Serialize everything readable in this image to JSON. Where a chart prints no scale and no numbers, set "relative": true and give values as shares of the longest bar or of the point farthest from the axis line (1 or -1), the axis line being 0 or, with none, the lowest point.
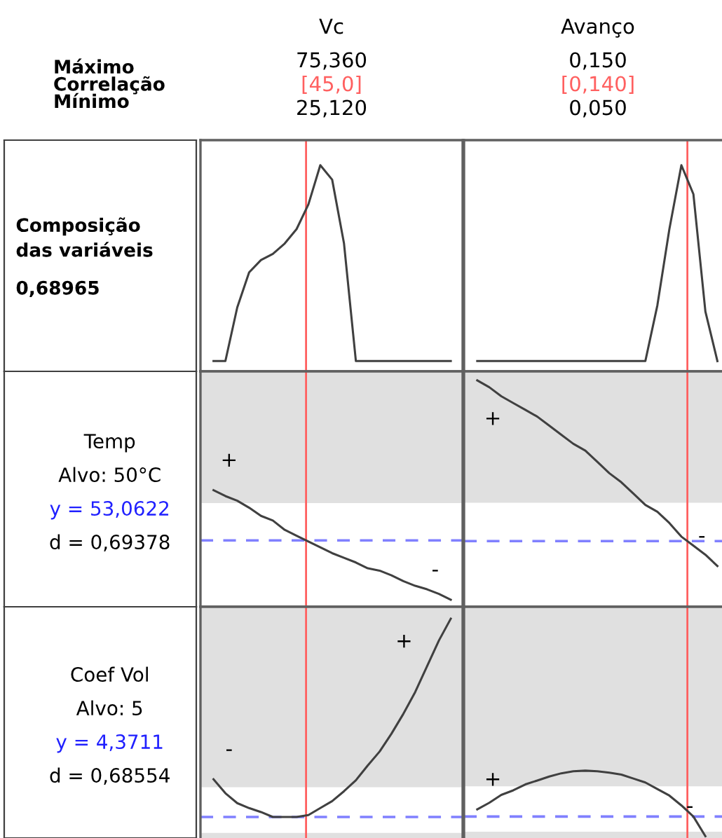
{
  "chart_data": [
    {
      "type": "line",
      "relative": true,
      "title": "Vc",
      "subtitle": "Máximo\nCorrelação\nMínimo",
      "ylabel": "Composição\ndas variáveis",
      "color": "#404040",
      "categories": [
        null,
        null,
        null,
        null,
        null,
        null,
        null,
        null,
        null,
        null,
        null,
        null,
        null,
        null,
        null,
        null,
        null,
        null,
        null,
        null,
        null
      ],
      "values": [
        0.05,
        0.05,
        0.31,
        0.48,
        0.54,
        0.57,
        0.62,
        0.69,
        0.81,
        1,
        0.93,
        0.62,
        0.05,
        0.05,
        0.05,
        0.05,
        0.05,
        0.05,
        0.05,
        0.05,
        0.05
      ],
      "annotations": [
        "75,360",
        "[45,0]",
        "25,120",
        "0,68965"
      ]
    },
    {
      "type": "line",
      "relative": true,
      "title": "Avanço",
      "color": "#404040",
      "categories": [
        null,
        null,
        null,
        null,
        null,
        null,
        null,
        null,
        null,
        null,
        null,
        null,
        null,
        null,
        null,
        null,
        null,
        null,
        null,
        null,
        null
      ],
      "values": [
        0.05,
        0.05,
        0.05,
        0.05,
        0.05,
        0.05,
        0.05,
        0.05,
        0.05,
        0.05,
        0.05,
        0.05,
        0.05,
        0.05,
        0.05,
        0.32,
        0.69,
        1,
        0.86,
        0.29,
        0.05
      ],
      "annotations": [
        "0,150",
        "[0,140]",
        "0,050"
      ]
    },
    {
      "type": "line",
      "relative": true,
      "ylabel": "Temp",
      "color": "#404040",
      "categories": [
        null,
        null,
        null,
        null,
        null,
        null,
        null,
        null,
        null,
        null,
        null,
        null,
        null,
        null,
        null,
        null,
        null,
        null,
        null,
        null,
        null
      ],
      "values": [
        1,
        0.95,
        0.91,
        0.85,
        0.78,
        0.74,
        0.66,
        0.61,
        0.56,
        0.51,
        0.46,
        0.42,
        0.38,
        0.33,
        0.31,
        0.27,
        0.22,
        0.18,
        0.15,
        0.11,
        0.06
      ],
      "annotations": [
        "Alvo: 50°C",
        "y = 53,0622",
        "d = 0,69378",
        "+",
        "-"
      ],
      "ref_lines": [
        {
          "axis": "y",
          "value": 0.57,
          "color": "#8080ff",
          "line_style": "dashed"
        }
      ],
      "bands": [
        {
          "axis": "y",
          "from": 0.89,
          "to": 2.02,
          "color": "#e0e0e0"
        }
      ]
    },
    {
      "type": "line",
      "relative": true,
      "color": "#404040",
      "categories": [
        null,
        null,
        null,
        null,
        null,
        null,
        null,
        null,
        null,
        null,
        null,
        null,
        null,
        null,
        null,
        null,
        null,
        null,
        null,
        null,
        null
      ],
      "values": [
        1,
        0.97,
        0.93,
        0.9,
        0.87,
        0.84,
        0.8,
        0.76,
        0.72,
        0.69,
        0.64,
        0.59,
        0.55,
        0.5,
        0.45,
        0.42,
        0.37,
        0.31,
        0.27,
        0.23,
        0.18
      ],
      "annotations": [
        "+",
        "-"
      ],
      "ref_lines": [
        {
          "axis": "y",
          "value": 0.29,
          "color": "#8080ff",
          "line_style": "dashed"
        }
      ],
      "bands": [
        {
          "axis": "y",
          "from": 0.46,
          "to": 1.04,
          "color": "#e0e0e0"
        }
      ]
    },
    {
      "type": "line",
      "relative": true,
      "ylabel": "Coef Vol",
      "color": "#404040",
      "categories": [
        null,
        null,
        null,
        null,
        null,
        null,
        null,
        null,
        null,
        null,
        null,
        null,
        null,
        null,
        null,
        null,
        null,
        null,
        null,
        null,
        null
      ],
      "values": [
        0.19,
        0.12,
        0.07,
        0.045,
        0.025,
        0,
        0,
        0,
        0.01,
        0.045,
        0.08,
        0.13,
        0.185,
        0.26,
        0.33,
        0.42,
        0.52,
        0.63,
        0.76,
        0.89,
        1
      ],
      "annotations": [
        "Alvo: 5",
        "y = 4,3711",
        "d = 0,68554",
        "-",
        "+"
      ],
      "ref_lines": [
        {
          "axis": "y",
          "value": 0,
          "color": "#8080ff",
          "line_style": "dashed"
        }
      ],
      "bands": [
        {
          "axis": "y",
          "from": 0.15,
          "to": 1.06,
          "color": "#e0e0e0"
        },
        {
          "axis": "y",
          "from": -0.12,
          "to": -0.08,
          "color": "#e0e0e0"
        }
      ]
    },
    {
      "type": "line",
      "relative": true,
      "color": "#404040",
      "categories": [
        null,
        null,
        null,
        null,
        null,
        null,
        null,
        null,
        null,
        null,
        null,
        null,
        null,
        null,
        null,
        null,
        null,
        null,
        null,
        null
      ],
      "values": [
        0.41,
        0.51,
        0.63,
        0.7,
        0.79,
        0.85,
        0.91,
        0.96,
        0.99,
        1,
        0.99,
        0.97,
        0.94,
        0.88,
        0.82,
        0.72,
        0.62,
        0.47,
        0.3,
        0
      ],
      "annotations": [
        "+",
        "-"
      ],
      "ref_lines": [
        {
          "axis": "y",
          "value": 0.3,
          "color": "#8080ff",
          "line_style": "dashed"
        }
      ],
      "bands": [
        {
          "axis": "y",
          "from": 0.76,
          "to": 3.5,
          "color": "#e0e0e0"
        },
        {
          "axis": "y",
          "from": -0.07,
          "to": 0.07,
          "color": "#e0e0e0"
        }
      ]
    }
  ]
}
